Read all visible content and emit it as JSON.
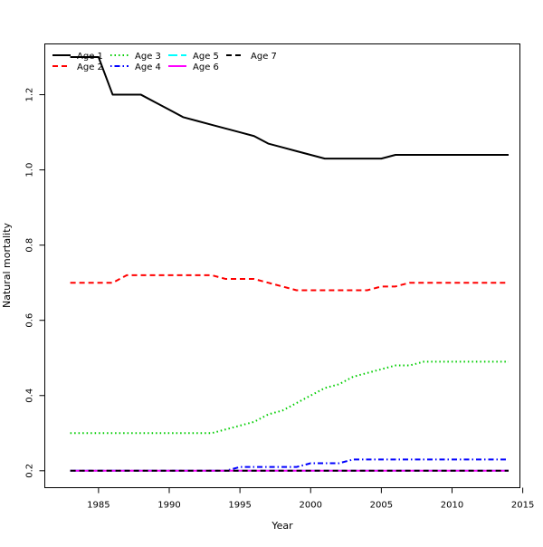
{
  "chart_data": {
    "type": "line",
    "title": "",
    "xlabel": "Year",
    "ylabel": "Natural mortality",
    "xlim": [
      1981.2,
      2014.8
    ],
    "ylim": [
      0.155,
      1.335
    ],
    "xticks": [
      1985,
      1990,
      1995,
      2000,
      2005,
      2010,
      2015
    ],
    "yticks": [
      0.2,
      0.4,
      0.6,
      0.8,
      1.0,
      1.2
    ],
    "ytick_labels": [
      "0.2",
      "0.4",
      "0.6",
      "0.8",
      "1.0",
      "1.2"
    ],
    "grid": false,
    "legend": {
      "placement": "top-left",
      "columns": 4
    },
    "x": [
      1983,
      1984,
      1985,
      1986,
      1987,
      1988,
      1989,
      1990,
      1991,
      1992,
      1993,
      1994,
      1995,
      1996,
      1997,
      1998,
      1999,
      2000,
      2001,
      2002,
      2003,
      2004,
      2005,
      2006,
      2007,
      2008,
      2009,
      2010,
      2011,
      2012,
      2013,
      2014
    ],
    "series": [
      {
        "name": "Age 1",
        "color": "#000000",
        "dash": "solid",
        "values": [
          1.3,
          1.3,
          1.3,
          1.2,
          1.2,
          1.2,
          1.18,
          1.16,
          1.14,
          1.13,
          1.12,
          1.11,
          1.1,
          1.09,
          1.07,
          1.06,
          1.05,
          1.04,
          1.03,
          1.03,
          1.03,
          1.03,
          1.03,
          1.04,
          1.04,
          1.04,
          1.04,
          1.04,
          1.04,
          1.04,
          1.04,
          1.04
        ]
      },
      {
        "name": "Age 2",
        "color": "#ff0000",
        "dash": "dashed",
        "values": [
          0.7,
          0.7,
          0.7,
          0.7,
          0.72,
          0.72,
          0.72,
          0.72,
          0.72,
          0.72,
          0.72,
          0.71,
          0.71,
          0.71,
          0.7,
          0.69,
          0.68,
          0.68,
          0.68,
          0.68,
          0.68,
          0.68,
          0.69,
          0.69,
          0.7,
          0.7,
          0.7,
          0.7,
          0.7,
          0.7,
          0.7,
          0.7
        ]
      },
      {
        "name": "Age 3",
        "color": "#00cd00",
        "dash": "dotted",
        "values": [
          0.3,
          0.3,
          0.3,
          0.3,
          0.3,
          0.3,
          0.3,
          0.3,
          0.3,
          0.3,
          0.3,
          0.31,
          0.32,
          0.33,
          0.35,
          0.36,
          0.38,
          0.4,
          0.42,
          0.43,
          0.45,
          0.46,
          0.47,
          0.48,
          0.48,
          0.49,
          0.49,
          0.49,
          0.49,
          0.49,
          0.49,
          0.49
        ]
      },
      {
        "name": "Age 4",
        "color": "#0000ff",
        "dash": "dotdash",
        "values": [
          0.2,
          0.2,
          0.2,
          0.2,
          0.2,
          0.2,
          0.2,
          0.2,
          0.2,
          0.2,
          0.2,
          0.2,
          0.21,
          0.21,
          0.21,
          0.21,
          0.21,
          0.22,
          0.22,
          0.22,
          0.23,
          0.23,
          0.23,
          0.23,
          0.23,
          0.23,
          0.23,
          0.23,
          0.23,
          0.23,
          0.23,
          0.23
        ]
      },
      {
        "name": "Age 5",
        "color": "#00ffff",
        "dash": "longdash",
        "values": [
          0.2,
          0.2,
          0.2,
          0.2,
          0.2,
          0.2,
          0.2,
          0.2,
          0.2,
          0.2,
          0.2,
          0.2,
          0.2,
          0.2,
          0.2,
          0.2,
          0.2,
          0.2,
          0.2,
          0.2,
          0.2,
          0.2,
          0.2,
          0.2,
          0.2,
          0.2,
          0.2,
          0.2,
          0.2,
          0.2,
          0.2,
          0.2
        ]
      },
      {
        "name": "Age 6",
        "color": "#ff00ff",
        "dash": "solid",
        "values": [
          0.2,
          0.2,
          0.2,
          0.2,
          0.2,
          0.2,
          0.2,
          0.2,
          0.2,
          0.2,
          0.2,
          0.2,
          0.2,
          0.2,
          0.2,
          0.2,
          0.2,
          0.2,
          0.2,
          0.2,
          0.2,
          0.2,
          0.2,
          0.2,
          0.2,
          0.2,
          0.2,
          0.2,
          0.2,
          0.2,
          0.2,
          0.2
        ]
      },
      {
        "name": "Age 7",
        "color": "#000000",
        "dash": "dashed",
        "values": [
          0.2,
          0.2,
          0.2,
          0.2,
          0.2,
          0.2,
          0.2,
          0.2,
          0.2,
          0.2,
          0.2,
          0.2,
          0.2,
          0.2,
          0.2,
          0.2,
          0.2,
          0.2,
          0.2,
          0.2,
          0.2,
          0.2,
          0.2,
          0.2,
          0.2,
          0.2,
          0.2,
          0.2,
          0.2,
          0.2,
          0.2,
          0.2
        ]
      }
    ]
  }
}
